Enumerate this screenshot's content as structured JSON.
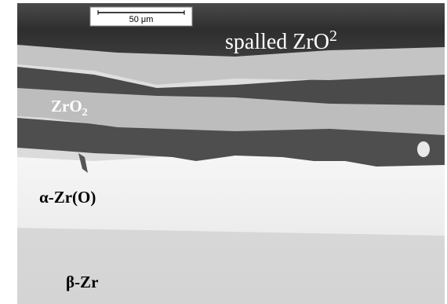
{
  "scale_bar": {
    "label": "50 μm"
  },
  "labels": [
    {
      "text": "spalled ZrO",
      "script": "2"
    },
    {
      "text": "ZrO",
      "script": "2"
    },
    {
      "text": "α-Zr(O)"
    },
    {
      "text": "β-Zr"
    }
  ]
}
